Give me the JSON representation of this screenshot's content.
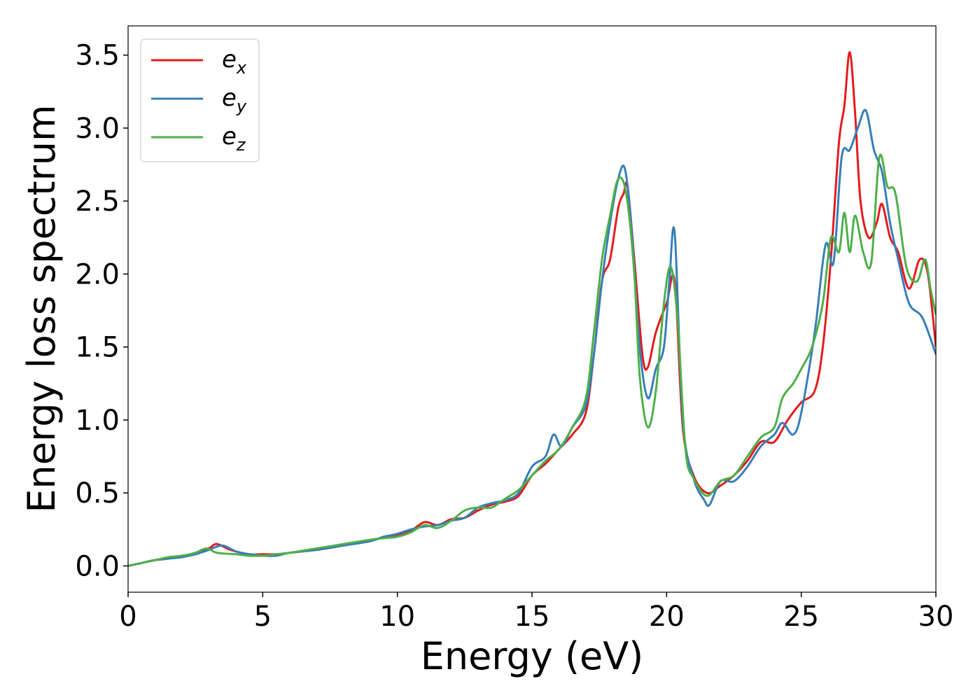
{
  "chart_data": {
    "type": "line",
    "title": "",
    "xlabel": "Energy (eV)",
    "ylabel": "Energy loss spectrum",
    "xlim": [
      0,
      30
    ],
    "ylim": [
      -0.18,
      3.7
    ],
    "xticks": [
      0,
      5,
      10,
      15,
      20,
      25,
      30
    ],
    "xtick_labels": [
      "0",
      "5",
      "10",
      "15",
      "20",
      "25",
      "30"
    ],
    "yticks": [
      0.0,
      0.5,
      1.0,
      1.5,
      2.0,
      2.5,
      3.0,
      3.5
    ],
    "ytick_labels": [
      "0.0",
      "0.5",
      "1.0",
      "1.5",
      "2.0",
      "2.5",
      "3.0",
      "3.5"
    ],
    "grid": false,
    "legend_position": "top-left",
    "series": [
      {
        "name": "e_x",
        "label_base": "e",
        "label_sub": "x",
        "color": "#e41a1c",
        "x": [
          0,
          0.5,
          1,
          1.5,
          2,
          2.5,
          3,
          3.3,
          3.8,
          4.5,
          5,
          5.5,
          6,
          7,
          8,
          9,
          9.5,
          10,
          10.5,
          11,
          11.5,
          12,
          12.5,
          13,
          13.5,
          14,
          14.5,
          15,
          15.5,
          16,
          16.5,
          17,
          17.3,
          17.6,
          17.9,
          18.2,
          18.4,
          18.55,
          18.8,
          19.1,
          19.3,
          19.6,
          20,
          20.3,
          20.6,
          21,
          21.5,
          22,
          22.5,
          23,
          23.5,
          24,
          24.5,
          25,
          25.5,
          25.8,
          26.1,
          26.4,
          26.6,
          26.8,
          27,
          27.2,
          27.5,
          27.8,
          28,
          28.3,
          28.6,
          29,
          29.4,
          29.7,
          30
        ],
        "y": [
          0.0,
          0.02,
          0.04,
          0.05,
          0.07,
          0.08,
          0.12,
          0.15,
          0.11,
          0.08,
          0.08,
          0.08,
          0.09,
          0.11,
          0.14,
          0.17,
          0.2,
          0.21,
          0.24,
          0.3,
          0.28,
          0.32,
          0.33,
          0.38,
          0.42,
          0.44,
          0.48,
          0.62,
          0.7,
          0.8,
          0.9,
          1.05,
          1.45,
          1.95,
          2.1,
          2.45,
          2.55,
          2.6,
          2.1,
          1.45,
          1.36,
          1.6,
          1.8,
          1.95,
          0.95,
          0.62,
          0.5,
          0.55,
          0.62,
          0.72,
          0.85,
          0.85,
          1.0,
          1.12,
          1.2,
          1.5,
          2.1,
          2.9,
          3.15,
          3.52,
          3.1,
          2.5,
          2.25,
          2.35,
          2.48,
          2.25,
          2.15,
          1.9,
          2.1,
          2.0,
          1.5
        ]
      },
      {
        "name": "e_y",
        "label_base": "e",
        "label_sub": "y",
        "color": "#377eb8",
        "x": [
          0,
          0.5,
          1,
          1.5,
          2,
          2.5,
          3,
          3.5,
          4,
          4.5,
          5,
          5.5,
          6,
          7,
          8,
          9,
          9.5,
          10,
          10.5,
          11,
          11.5,
          12,
          12.5,
          13,
          13.5,
          14,
          14.5,
          15,
          15.5,
          15.8,
          16.1,
          16.5,
          17,
          17.3,
          17.6,
          17.9,
          18.2,
          18.45,
          18.7,
          19,
          19.3,
          19.6,
          19.9,
          20.1,
          20.3,
          20.6,
          21,
          21.4,
          21.6,
          22,
          22.5,
          23,
          23.5,
          24,
          24.3,
          24.7,
          25,
          25.5,
          25.9,
          26.2,
          26.5,
          26.8,
          27.1,
          27.4,
          27.7,
          28,
          28.3,
          28.6,
          29,
          29.5,
          30
        ],
        "y": [
          0.0,
          0.02,
          0.04,
          0.05,
          0.06,
          0.08,
          0.11,
          0.14,
          0.1,
          0.08,
          0.07,
          0.07,
          0.09,
          0.11,
          0.14,
          0.17,
          0.2,
          0.22,
          0.25,
          0.27,
          0.28,
          0.31,
          0.33,
          0.4,
          0.43,
          0.45,
          0.5,
          0.68,
          0.75,
          0.9,
          0.82,
          0.95,
          1.1,
          1.45,
          1.95,
          2.35,
          2.65,
          2.72,
          2.3,
          1.5,
          1.15,
          1.35,
          1.5,
          1.95,
          2.28,
          1.0,
          0.6,
          0.45,
          0.42,
          0.58,
          0.58,
          0.68,
          0.82,
          0.9,
          0.98,
          0.9,
          1.05,
          1.6,
          2.2,
          2.08,
          2.8,
          2.85,
          3.0,
          3.12,
          2.85,
          2.7,
          2.35,
          2.1,
          1.8,
          1.7,
          1.45
        ]
      },
      {
        "name": "e_z",
        "label_base": "e",
        "label_sub": "z",
        "color": "#4daf4a",
        "x": [
          0,
          0.5,
          1,
          1.5,
          2,
          2.5,
          2.9,
          3.3,
          4,
          4.5,
          5,
          5.5,
          6,
          7,
          8,
          9,
          9.5,
          10,
          10.5,
          11,
          11.5,
          12,
          12.5,
          13,
          13.5,
          14,
          14.5,
          15,
          15.5,
          16,
          16.5,
          17,
          17.3,
          17.6,
          17.9,
          18.2,
          18.5,
          18.8,
          19,
          19.3,
          19.6,
          19.9,
          20.15,
          20.4,
          20.7,
          21,
          21.5,
          22,
          22.5,
          23,
          23.5,
          24,
          24.3,
          24.7,
          25,
          25.4,
          25.8,
          26.1,
          26.4,
          26.6,
          26.8,
          27,
          27.3,
          27.6,
          27.9,
          28.2,
          28.5,
          28.9,
          29.3,
          29.6,
          29.8,
          30
        ],
        "y": [
          0.0,
          0.02,
          0.04,
          0.06,
          0.07,
          0.09,
          0.12,
          0.09,
          0.08,
          0.07,
          0.07,
          0.08,
          0.09,
          0.12,
          0.15,
          0.18,
          0.19,
          0.2,
          0.23,
          0.28,
          0.26,
          0.31,
          0.38,
          0.4,
          0.4,
          0.46,
          0.52,
          0.62,
          0.72,
          0.8,
          0.95,
          1.15,
          1.6,
          2.1,
          2.4,
          2.65,
          2.55,
          2.0,
          1.3,
          0.95,
          1.2,
          1.8,
          2.05,
          1.7,
          0.8,
          0.6,
          0.48,
          0.58,
          0.62,
          0.75,
          0.88,
          0.95,
          1.15,
          1.25,
          1.35,
          1.5,
          1.8,
          2.25,
          2.15,
          2.42,
          2.15,
          2.4,
          2.15,
          2.08,
          2.8,
          2.6,
          2.55,
          2.05,
          1.95,
          2.1,
          1.9,
          1.72
        ]
      }
    ]
  }
}
